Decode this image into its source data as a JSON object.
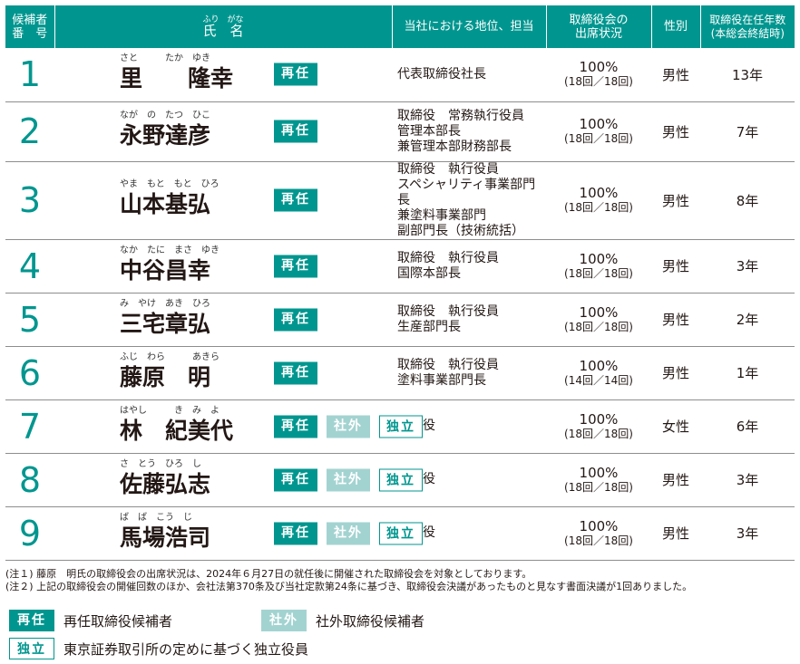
{
  "header": {
    "num_line1": "候補者",
    "num_line2": "番　号",
    "name_ruby": "ふり　がな",
    "name": "氏　名",
    "position": "当社における地位、担当",
    "attendance_line1": "取締役会の",
    "attendance_line2": "出席状況",
    "gender": "性別",
    "tenure_line1": "取締役在任年数",
    "tenure_line2": "(本総会終結時)"
  },
  "badges": {
    "reelect": "再任",
    "outside": "社外",
    "independent": "独立"
  },
  "candidates": [
    {
      "num": "1",
      "ruby": "さと　　　たか　ゆき",
      "name": "里　　隆幸",
      "position": [
        "代表取締役社長"
      ],
      "attendance": "100%",
      "attendance_detail": "(18回／18回)",
      "gender": "男性",
      "tenure": "13年",
      "reelect": true,
      "outside": false,
      "independent": false
    },
    {
      "num": "2",
      "ruby": "なが　の　たつ　ひこ",
      "name": "永野達彦",
      "position": [
        "取締役　常務執行役員",
        "管理本部長",
        "兼管理本部財務部長"
      ],
      "attendance": "100%",
      "attendance_detail": "(18回／18回)",
      "gender": "男性",
      "tenure": "7年",
      "reelect": true,
      "outside": false,
      "independent": false
    },
    {
      "num": "3",
      "ruby": "やま　もと　もと　ひろ",
      "name": "山本基弘",
      "position": [
        "取締役　執行役員",
        "スペシャリティ事業部門長",
        "兼塗料事業部門",
        "副部門長（技術統括）"
      ],
      "attendance": "100%",
      "attendance_detail": "(18回／18回)",
      "gender": "男性",
      "tenure": "8年",
      "reelect": true,
      "outside": false,
      "independent": false
    },
    {
      "num": "4",
      "ruby": "なか　たに　まさ　ゆき",
      "name": "中谷昌幸",
      "position": [
        "取締役　執行役員",
        "国際本部長"
      ],
      "attendance": "100%",
      "attendance_detail": "(18回／18回)",
      "gender": "男性",
      "tenure": "3年",
      "reelect": true,
      "outside": false,
      "independent": false
    },
    {
      "num": "5",
      "ruby": "み　やけ　あき　ひろ",
      "name": "三宅章弘",
      "position": [
        "取締役　執行役員",
        "生産部門長"
      ],
      "attendance": "100%",
      "attendance_detail": "(18回／18回)",
      "gender": "男性",
      "tenure": "2年",
      "reelect": true,
      "outside": false,
      "independent": false
    },
    {
      "num": "6",
      "ruby": "ふじ　わら　　　あきら",
      "name": "藤原　明",
      "position": [
        "取締役　執行役員",
        "塗料事業部門長"
      ],
      "attendance": "100%",
      "attendance_detail": "(14回／14回)",
      "gender": "男性",
      "tenure": "1年",
      "reelect": true,
      "outside": false,
      "independent": false
    },
    {
      "num": "7",
      "ruby": "はやし　　　き　み　よ",
      "name": "林　紀美代",
      "position": [
        "取締役"
      ],
      "attendance": "100%",
      "attendance_detail": "(18回／18回)",
      "gender": "女性",
      "tenure": "6年",
      "reelect": true,
      "outside": true,
      "independent": true
    },
    {
      "num": "8",
      "ruby": "さ　とう　ひろ　し",
      "name": "佐藤弘志",
      "position": [
        "取締役"
      ],
      "attendance": "100%",
      "attendance_detail": "(18回／18回)",
      "gender": "男性",
      "tenure": "3年",
      "reelect": true,
      "outside": true,
      "independent": true
    },
    {
      "num": "9",
      "ruby": "ば　ば　こう　じ",
      "name": "馬場浩司",
      "position": [
        "取締役"
      ],
      "attendance": "100%",
      "attendance_detail": "(18回／18回)",
      "gender": "男性",
      "tenure": "3年",
      "reelect": true,
      "outside": true,
      "independent": true
    }
  ],
  "notes": [
    "(注１) 藤原　明氏の取締役会の出席状況は、2024年６月27日の就任後に開催された取締役会を対象としております。",
    "(注２) 上記の取締役会の開催回数のほか、会社法第370条及び当社定款第24条に基づき、取締役会決議があったものと見なす書面決議が1回ありました。"
  ],
  "legend": {
    "reelect_desc": "再任取締役候補者",
    "outside_desc": "社外取締役候補者",
    "independent_desc": "東京証券取引所の定めに基づく独立役員"
  },
  "colors": {
    "accent": "#00968f",
    "accent_light": "#a3d3d1",
    "rule": "#8d8d8d"
  }
}
